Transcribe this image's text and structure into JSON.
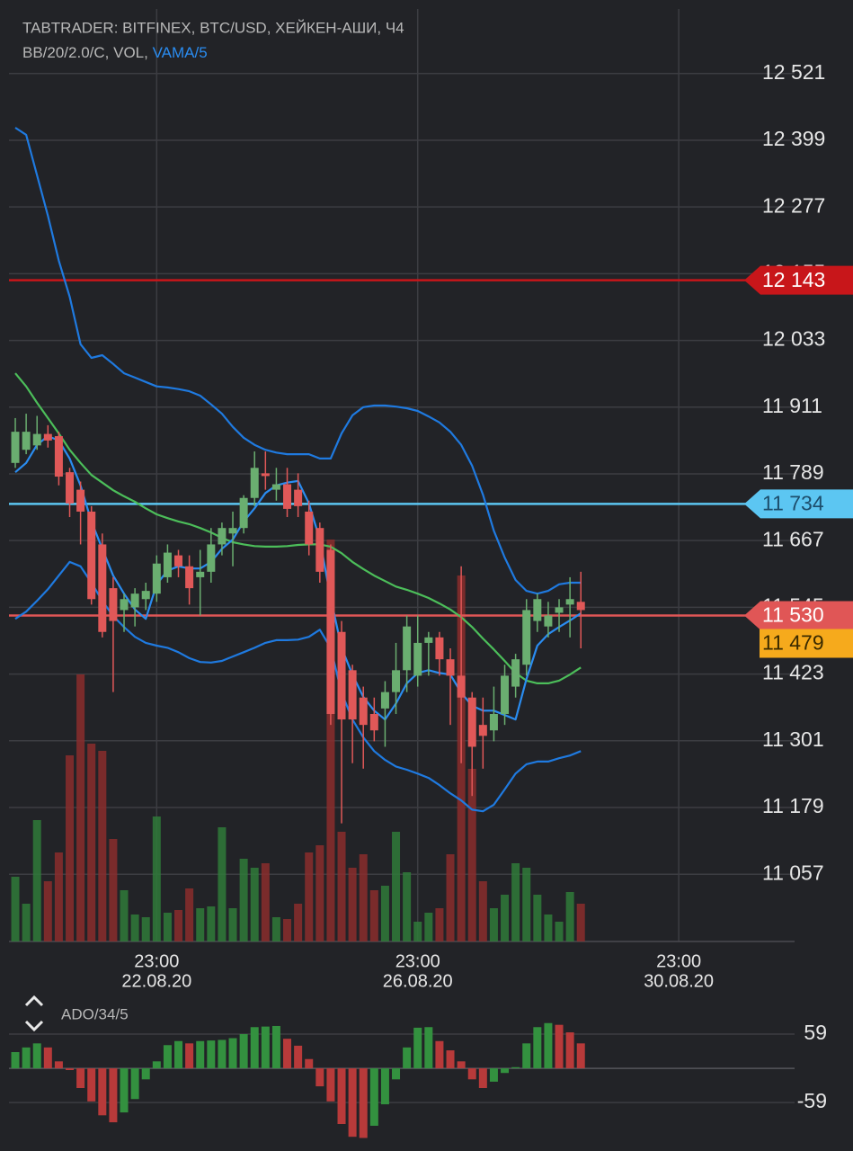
{
  "chart_data": [
    {
      "type": "candlestick",
      "title": "TABTRADER: BITFINEX, BTC/USD, ХЕЙКЕН-АШИ, Ч4",
      "subtitle": "BB/20/2.0/C, VOL, ",
      "subtitle_highlight": "VAMA/5",
      "subtitle_highlight_color": "#2a8cf0",
      "xlim": [
        -0.58,
        71.65
      ],
      "xticks": [
        {
          "value": 13,
          "label": "23:00",
          "date": "22.08.20"
        },
        {
          "value": 37,
          "label": "23:00",
          "date": "26.08.20"
        },
        {
          "value": 61,
          "label": "23:00",
          "date": "30.08.20"
        }
      ],
      "ylim": [
        10934,
        12639
      ],
      "yticks": [
        {
          "value": 12521,
          "label": "12 521"
        },
        {
          "value": 12399,
          "label": "12 399"
        },
        {
          "value": 12277,
          "label": "12 277"
        },
        {
          "value": 12155,
          "label": "12 155"
        },
        {
          "value": 12033,
          "label": "12 033"
        },
        {
          "value": 11911,
          "label": "11 911"
        },
        {
          "value": 11789,
          "label": "11 789"
        },
        {
          "value": 11667,
          "label": "11 667"
        },
        {
          "value": 11545,
          "label": "11 545"
        },
        {
          "value": 11423,
          "label": "11 423"
        },
        {
          "value": 11301,
          "label": "11 301"
        },
        {
          "value": 11179,
          "label": "11 179"
        },
        {
          "value": 11057,
          "label": "11 057"
        }
      ],
      "grid": true,
      "up_color": "#6aae70",
      "down_color": "#e05858",
      "open": [
        11809,
        11833,
        11841,
        11862,
        11858,
        11792,
        11760,
        11720,
        11660,
        11580,
        11540,
        11545,
        11560,
        11570,
        11600,
        11640,
        11620,
        11600,
        11610,
        11660,
        11680,
        11690,
        11745,
        11790,
        11760,
        11770,
        11760,
        11720,
        11690,
        11650,
        11500,
        11430,
        11380,
        11350,
        11360,
        11390,
        11430,
        11420,
        11480,
        11490,
        11450,
        11420,
        11380,
        11330,
        11320,
        11350,
        11400,
        11440,
        11520,
        11510,
        11535,
        11550,
        11555
      ],
      "high": [
        11891,
        11899,
        11895,
        11878,
        11866,
        11800,
        11775,
        11730,
        11680,
        11600,
        11570,
        11580,
        11590,
        11640,
        11660,
        11650,
        11640,
        11650,
        11690,
        11700,
        11720,
        11750,
        11830,
        11830,
        11800,
        11800,
        11790,
        11740,
        11700,
        11660,
        11520,
        11440,
        11400,
        11380,
        11410,
        11480,
        11530,
        11530,
        11500,
        11500,
        11470,
        11620,
        11390,
        11380,
        11400,
        11440,
        11460,
        11560,
        11570,
        11555,
        11560,
        11600,
        11610
      ],
      "low": [
        11800,
        11825,
        11833,
        11837,
        11768,
        11710,
        11660,
        11550,
        11490,
        11390,
        11500,
        11510,
        11540,
        11555,
        11590,
        11600,
        11550,
        11530,
        11590,
        11640,
        11620,
        11680,
        11730,
        11760,
        11740,
        11710,
        11710,
        11640,
        11590,
        11330,
        11150,
        11260,
        11250,
        11300,
        11290,
        11350,
        11390,
        11400,
        11420,
        11420,
        11330,
        11260,
        11200,
        11250,
        11300,
        11330,
        11380,
        11420,
        11500,
        11490,
        11500,
        11490,
        11470
      ],
      "close": [
        11866,
        11866,
        11862,
        11850,
        11784,
        11735,
        11720,
        11560,
        11500,
        11520,
        11560,
        11570,
        11575,
        11625,
        11645,
        11620,
        11580,
        11610,
        11660,
        11690,
        11690,
        11745,
        11800,
        11785,
        11770,
        11725,
        11730,
        11660,
        11610,
        11350,
        11340,
        11340,
        11330,
        11320,
        11390,
        11430,
        11510,
        11480,
        11490,
        11450,
        11420,
        11380,
        11290,
        11310,
        11350,
        11420,
        11450,
        11540,
        11560,
        11530,
        11545,
        11560,
        11540
      ],
      "volume": [
        72,
        42,
        135,
        67,
        99,
        207,
        297,
        220,
        212,
        114,
        57,
        30,
        27,
        139,
        32,
        35,
        59,
        37,
        39,
        127,
        37,
        92,
        82,
        87,
        27,
        25,
        42,
        99,
        107,
        447,
        122,
        82,
        97,
        57,
        62,
        122,
        77,
        22,
        32,
        37,
        97,
        407,
        192,
        67,
        37,
        52,
        87,
        82,
        52,
        30,
        22,
        55,
        42
      ],
      "volume_up_color": "#2f7a3a",
      "volume_down_color": "#8a2d2d",
      "series": [
        {
          "color": "#1f7ae0",
          "values": [
            12422,
            12409,
            12335,
            12261,
            12179,
            12113,
            12026,
            12001,
            12006,
            11990,
            11973,
            11965,
            11957,
            11949,
            11947,
            11944,
            11940,
            11932,
            11916,
            11899,
            11875,
            11855,
            11842,
            11833,
            11828,
            11825,
            11825,
            11825,
            11817,
            11817,
            11863,
            11896,
            11911,
            11914,
            11914,
            11912,
            11909,
            11904,
            11894,
            11883,
            11866,
            11842,
            11804,
            11751,
            11685,
            11636,
            11595,
            11575,
            11570,
            11575,
            11587,
            11590,
            11590
          ]
        },
        {
          "color": "#4cbe5a",
          "values": [
            11973,
            11949,
            11919,
            11891,
            11863,
            11833,
            11809,
            11787,
            11773,
            11759,
            11748,
            11738,
            11726,
            11715,
            11708,
            11702,
            11697,
            11690,
            11682,
            11672,
            11664,
            11660,
            11657,
            11656,
            11656,
            11657,
            11659,
            11660,
            11660,
            11656,
            11644,
            11628,
            11615,
            11603,
            11593,
            11583,
            11577,
            11570,
            11562,
            11552,
            11541,
            11527,
            11509,
            11488,
            11468,
            11447,
            11425,
            11411,
            11406,
            11406,
            11411,
            11422,
            11435
          ]
        },
        {
          "color": "#1f7ae0",
          "values": [
            11524,
            11537,
            11557,
            11578,
            11603,
            11628,
            11620,
            11590,
            11557,
            11529,
            11509,
            11491,
            11480,
            11475,
            11471,
            11463,
            11452,
            11445,
            11444,
            11447,
            11455,
            11463,
            11471,
            11480,
            11485,
            11485,
            11486,
            11491,
            11504,
            11471,
            11389,
            11340,
            11307,
            11282,
            11266,
            11254,
            11248,
            11241,
            11233,
            11220,
            11205,
            11192,
            11175,
            11172,
            11184,
            11212,
            11241,
            11258,
            11263,
            11263,
            11269,
            11274,
            11282
          ]
        },
        {
          "color": "#2a8cf0",
          "values": [
            11792,
            11809,
            11842,
            11858,
            11850,
            11817,
            11768,
            11702,
            11652,
            11603,
            11570,
            11541,
            11524,
            11587,
            11612,
            11620,
            11616,
            11616,
            11628,
            11652,
            11669,
            11702,
            11726,
            11754,
            11768,
            11773,
            11776,
            11735,
            11669,
            11562,
            11471,
            11422,
            11381,
            11356,
            11340,
            11369,
            11406,
            11425,
            11430,
            11425,
            11422,
            11389,
            11365,
            11356,
            11356,
            11348,
            11340,
            11414,
            11475,
            11496,
            11509,
            11521,
            11534
          ]
        }
      ],
      "levels": [
        {
          "value": 12143,
          "label": "12 143",
          "color": "#c8161a",
          "text_color": "#ffffff",
          "line": true
        },
        {
          "value": 11734,
          "label": "11 734",
          "color": "#5cc6f2",
          "text_color": "#1d4d6b",
          "line": true
        },
        {
          "value": 11530,
          "label": "11 530",
          "color": "#e05656",
          "text_color": "#ffffff",
          "line": true
        },
        {
          "value": 11479,
          "label": "11 479",
          "color": "#f6aa1c",
          "text_color": "#3a2a00",
          "line": false
        }
      ]
    },
    {
      "type": "bar",
      "title": "ADO/34/5",
      "ylim": [
        -127,
        90
      ],
      "yticks": [
        59,
        -59
      ],
      "grid": true,
      "up_color": "#33913f",
      "down_color": "#b83a3a",
      "values": [
        28,
        36,
        43,
        36,
        12,
        -3,
        -34,
        -57,
        -81,
        -93,
        -76,
        -53,
        -19,
        12,
        40,
        47,
        43,
        47,
        48,
        49,
        52,
        59,
        71,
        72,
        73,
        51,
        39,
        16,
        -31,
        -57,
        -96,
        -118,
        -120,
        -99,
        -62,
        -19,
        36,
        70,
        71,
        47,
        31,
        12,
        -19,
        -34,
        -23,
        -8,
        2,
        43,
        71,
        78,
        75,
        62,
        43
      ]
    }
  ]
}
